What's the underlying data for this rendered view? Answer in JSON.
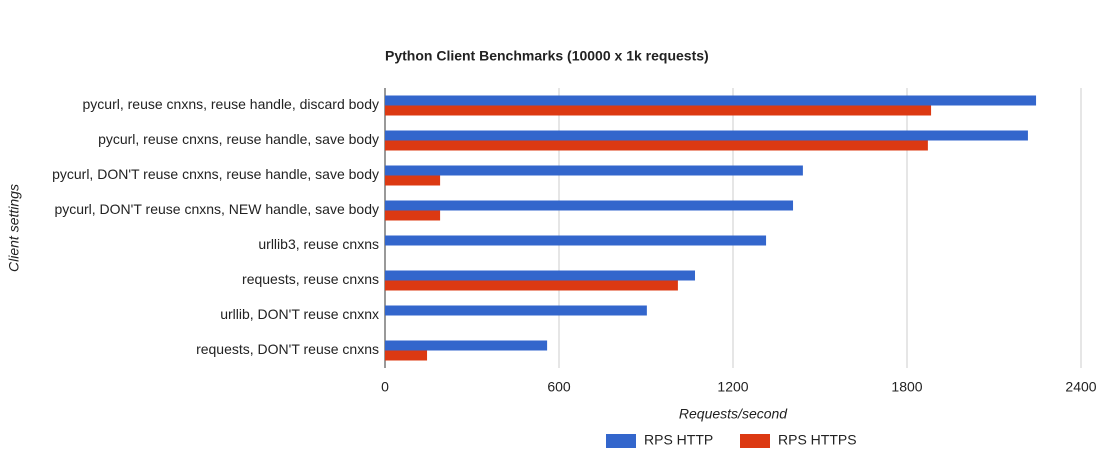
{
  "chart_data": {
    "type": "hbar",
    "title": "Python Client Benchmarks (10000 x 1k requests)",
    "x_label": "Requests/second",
    "y_label": "Client settings",
    "categories": [
      "pycurl, reuse cnxns, reuse handle, discard body",
      "pycurl, reuse cnxns, reuse handle, save body",
      "pycurl, DON'T reuse cnxns, reuse handle, save body",
      "pycurl, DON'T reuse cnxns, NEW handle, save body",
      "urllib3, reuse cnxns",
      "requests, reuse cnxns",
      "urllib, DON'T reuse cnxnx",
      "requests, DON'T reuse cnxns"
    ],
    "series": [
      {
        "name": "RPS HTTP",
        "color": "#3366cc",
        "values": [
          2245,
          2217,
          1441,
          1407,
          1314,
          1069,
          903,
          559
        ]
      },
      {
        "name": "RPS HTTPS",
        "color": "#dc3912",
        "values": [
          1883,
          1872,
          190,
          190,
          null,
          1010,
          null,
          145
        ]
      }
    ],
    "xlim": [
      0,
      2400
    ],
    "xticks": [
      0,
      600,
      1200,
      1800,
      2400
    ],
    "grid": true,
    "legend": "bottom"
  }
}
